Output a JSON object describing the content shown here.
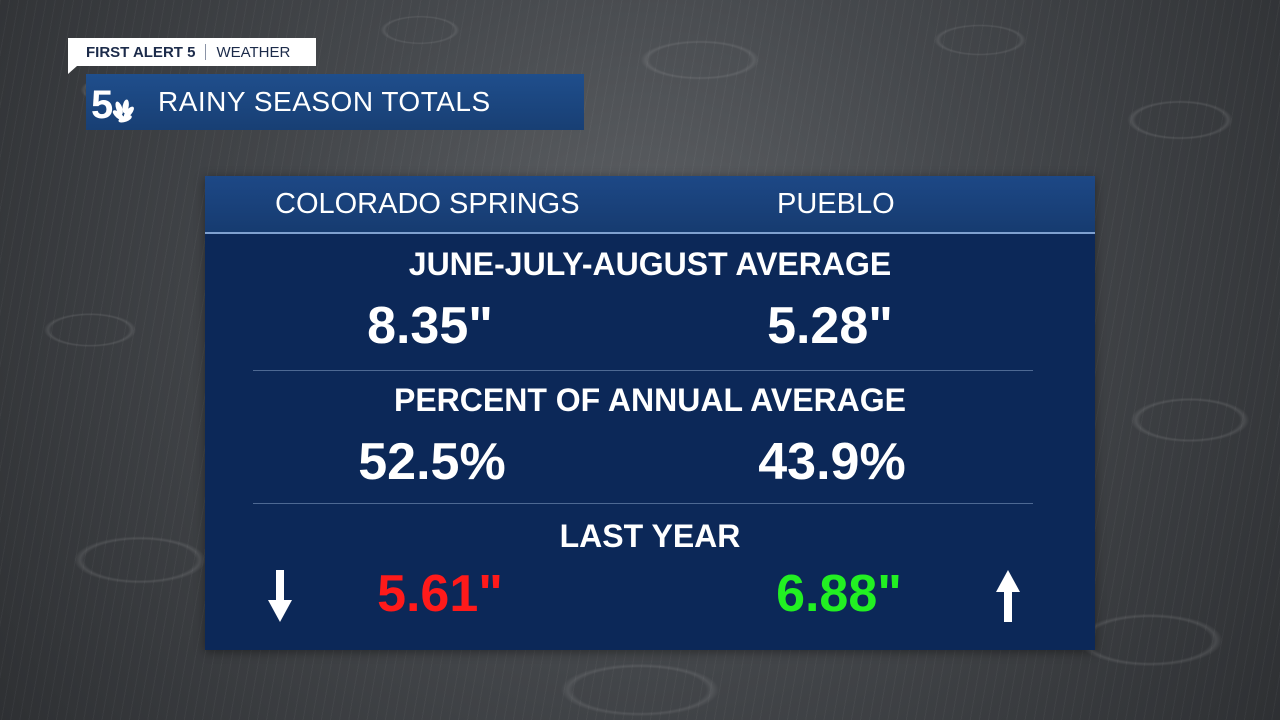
{
  "tag": {
    "brand": "FIRST ALERT 5",
    "section": "WEATHER"
  },
  "header": {
    "title": "RAINY SEASON TOTALS",
    "logo_icon": "channel-5-peacock-logo"
  },
  "columns": {
    "left": "COLORADO SPRINGS",
    "right": "PUEBLO"
  },
  "sections": {
    "average": {
      "title": "JUNE-JULY-AUGUST AVERAGE",
      "left": "8.35\"",
      "right": "5.28\""
    },
    "percent": {
      "title": "PERCENT OF ANNUAL AVERAGE",
      "left": "52.5%",
      "right": "43.9%"
    },
    "last_year": {
      "title": "LAST YEAR",
      "left": "5.61\"",
      "right": "6.88\"",
      "left_icon": "arrow-down-icon",
      "right_icon": "arrow-up-icon",
      "left_color": "#ff1a1a",
      "right_color": "#22f022"
    }
  },
  "colors": {
    "panel": "#0c2858",
    "header": "#1d4886",
    "title_bar": "#1f4e8c"
  }
}
